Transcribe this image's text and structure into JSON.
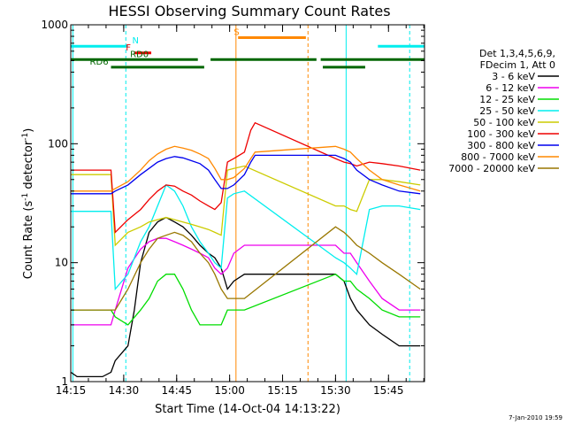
{
  "chart_data": {
    "type": "line",
    "title": "HESSI Observing Summary Count Rates",
    "xlabel": "Start Time (14-Oct-04 14:13:22)",
    "ylabel_main": "Count Rate (s",
    "ylabel_sup1": "-1",
    "ylabel_mid": " detector",
    "ylabel_sup2": "-1",
    "ylabel_end": ")",
    "ylog": true,
    "xlim": [
      14.25,
      15.92
    ],
    "ylim": [
      1,
      1000
    ],
    "x_ticks": [
      {
        "value": 14.25,
        "label": "14:15"
      },
      {
        "value": 14.5,
        "label": "14:30"
      },
      {
        "value": 14.75,
        "label": "14:45"
      },
      {
        "value": 15.0,
        "label": "15:00"
      },
      {
        "value": 15.25,
        "label": "15:15"
      },
      {
        "value": 15.5,
        "label": "15:30"
      },
      {
        "value": 15.75,
        "label": "15:45"
      }
    ],
    "y_ticks": [
      {
        "value": 1,
        "label": "1"
      },
      {
        "value": 10,
        "label": "10"
      },
      {
        "value": 100,
        "label": "100"
      },
      {
        "value": 1000,
        "label": "1000"
      }
    ],
    "legend_header": [
      "Det 1,3,4,5,6,9,",
      "FDecim 1, Att 0"
    ],
    "legend_placement": "right",
    "footer_date": "7-Jan-2010 19:59",
    "series": [
      {
        "name": "3 - 6 keV",
        "color": "#000000",
        "points": [
          [
            14.25,
            1.2
          ],
          [
            14.28,
            1.1
          ],
          [
            14.4,
            1.1
          ],
          [
            14.44,
            1.2
          ],
          [
            14.46,
            1.5
          ],
          [
            14.52,
            2
          ],
          [
            14.55,
            4
          ],
          [
            14.58,
            10
          ],
          [
            14.62,
            18
          ],
          [
            14.66,
            22
          ],
          [
            14.7,
            24
          ],
          [
            14.74,
            22
          ],
          [
            14.78,
            20
          ],
          [
            14.82,
            17
          ],
          [
            14.86,
            14
          ],
          [
            14.9,
            12
          ],
          [
            14.93,
            11
          ],
          [
            14.96,
            9
          ],
          [
            14.99,
            6
          ],
          [
            15.02,
            7
          ],
          [
            15.07,
            8
          ],
          [
            15.5,
            8
          ],
          [
            15.54,
            7
          ],
          [
            15.57,
            5
          ],
          [
            15.6,
            4
          ],
          [
            15.66,
            3
          ],
          [
            15.72,
            2.5
          ],
          [
            15.8,
            2
          ],
          [
            15.9,
            2
          ]
        ]
      },
      {
        "name": "6 - 12 keV",
        "color": "#ee00ee",
        "points": [
          [
            14.25,
            3
          ],
          [
            14.44,
            3
          ],
          [
            14.46,
            4
          ],
          [
            14.52,
            9
          ],
          [
            14.58,
            13
          ],
          [
            14.62,
            15
          ],
          [
            14.66,
            16
          ],
          [
            14.7,
            16
          ],
          [
            14.74,
            15
          ],
          [
            14.78,
            14
          ],
          [
            14.82,
            13
          ],
          [
            14.86,
            12
          ],
          [
            14.9,
            11
          ],
          [
            14.93,
            9
          ],
          [
            14.96,
            8
          ],
          [
            14.99,
            9
          ],
          [
            15.02,
            12
          ],
          [
            15.07,
            14
          ],
          [
            15.5,
            14
          ],
          [
            15.54,
            12
          ],
          [
            15.57,
            12
          ],
          [
            15.6,
            10
          ],
          [
            15.66,
            7
          ],
          [
            15.72,
            5
          ],
          [
            15.8,
            4
          ],
          [
            15.9,
            4
          ]
        ]
      },
      {
        "name": "12 - 25 keV",
        "color": "#00dd00",
        "points": [
          [
            14.25,
            4
          ],
          [
            14.44,
            4
          ],
          [
            14.46,
            3.5
          ],
          [
            14.52,
            3
          ],
          [
            14.58,
            4
          ],
          [
            14.62,
            5
          ],
          [
            14.66,
            7
          ],
          [
            14.7,
            8
          ],
          [
            14.74,
            8
          ],
          [
            14.78,
            6
          ],
          [
            14.82,
            4
          ],
          [
            14.86,
            3
          ],
          [
            14.9,
            3
          ],
          [
            14.93,
            3
          ],
          [
            14.96,
            3
          ],
          [
            14.99,
            4
          ],
          [
            15.02,
            4
          ],
          [
            15.07,
            4
          ],
          [
            15.5,
            8
          ],
          [
            15.54,
            7
          ],
          [
            15.57,
            7
          ],
          [
            15.6,
            6
          ],
          [
            15.66,
            5
          ],
          [
            15.72,
            4
          ],
          [
            15.8,
            3.5
          ],
          [
            15.9,
            3.5
          ]
        ]
      },
      {
        "name": "25 - 50 keV",
        "color": "#00eeee",
        "points": [
          [
            14.25,
            27
          ],
          [
            14.44,
            27
          ],
          [
            14.46,
            6
          ],
          [
            14.52,
            8
          ],
          [
            14.58,
            15
          ],
          [
            14.62,
            20
          ],
          [
            14.66,
            30
          ],
          [
            14.7,
            45
          ],
          [
            14.74,
            40
          ],
          [
            14.78,
            30
          ],
          [
            14.82,
            20
          ],
          [
            14.86,
            15
          ],
          [
            14.9,
            12
          ],
          [
            14.93,
            10
          ],
          [
            14.96,
            9
          ],
          [
            14.99,
            35
          ],
          [
            15.02,
            38
          ],
          [
            15.07,
            40
          ],
          [
            15.5,
            11
          ],
          [
            15.54,
            10
          ],
          [
            15.57,
            9
          ],
          [
            15.6,
            8
          ],
          [
            15.66,
            28
          ],
          [
            15.72,
            30
          ],
          [
            15.8,
            30
          ],
          [
            15.9,
            28
          ]
        ]
      },
      {
        "name": "50 - 100 keV",
        "color": "#cccc00",
        "points": [
          [
            14.25,
            55
          ],
          [
            14.44,
            55
          ],
          [
            14.46,
            14
          ],
          [
            14.52,
            18
          ],
          [
            14.58,
            20
          ],
          [
            14.62,
            22
          ],
          [
            14.66,
            23
          ],
          [
            14.7,
            24
          ],
          [
            14.74,
            23
          ],
          [
            14.78,
            22
          ],
          [
            14.82,
            21
          ],
          [
            14.86,
            20
          ],
          [
            14.9,
            19
          ],
          [
            14.93,
            18
          ],
          [
            14.96,
            17
          ],
          [
            14.99,
            60
          ],
          [
            15.02,
            62
          ],
          [
            15.07,
            65
          ],
          [
            15.5,
            30
          ],
          [
            15.54,
            30
          ],
          [
            15.57,
            28
          ],
          [
            15.6,
            27
          ],
          [
            15.66,
            50
          ],
          [
            15.72,
            50
          ],
          [
            15.8,
            48
          ],
          [
            15.9,
            45
          ]
        ]
      },
      {
        "name": "100 - 300 keV",
        "color": "#ee0000",
        "points": [
          [
            14.25,
            60
          ],
          [
            14.44,
            60
          ],
          [
            14.46,
            18
          ],
          [
            14.52,
            23
          ],
          [
            14.58,
            28
          ],
          [
            14.62,
            34
          ],
          [
            14.66,
            40
          ],
          [
            14.7,
            45
          ],
          [
            14.74,
            44
          ],
          [
            14.78,
            40
          ],
          [
            14.82,
            37
          ],
          [
            14.86,
            33
          ],
          [
            14.9,
            30
          ],
          [
            14.93,
            28
          ],
          [
            14.96,
            32
          ],
          [
            14.99,
            70
          ],
          [
            15.02,
            75
          ],
          [
            15.07,
            85
          ],
          [
            15.1,
            130
          ],
          [
            15.12,
            150
          ],
          [
            15.5,
            75
          ],
          [
            15.54,
            70
          ],
          [
            15.57,
            68
          ],
          [
            15.6,
            65
          ],
          [
            15.66,
            70
          ],
          [
            15.72,
            68
          ],
          [
            15.8,
            65
          ],
          [
            15.9,
            60
          ]
        ]
      },
      {
        "name": "300 - 800 keV",
        "color": "#0000ee",
        "points": [
          [
            14.25,
            38
          ],
          [
            14.44,
            38
          ],
          [
            14.46,
            40
          ],
          [
            14.52,
            45
          ],
          [
            14.58,
            55
          ],
          [
            14.62,
            62
          ],
          [
            14.66,
            70
          ],
          [
            14.7,
            75
          ],
          [
            14.74,
            78
          ],
          [
            14.78,
            76
          ],
          [
            14.82,
            72
          ],
          [
            14.86,
            68
          ],
          [
            14.9,
            60
          ],
          [
            14.93,
            50
          ],
          [
            14.96,
            42
          ],
          [
            14.99,
            42
          ],
          [
            15.02,
            45
          ],
          [
            15.07,
            55
          ],
          [
            15.1,
            70
          ],
          [
            15.12,
            80
          ],
          [
            15.5,
            80
          ],
          [
            15.54,
            75
          ],
          [
            15.57,
            70
          ],
          [
            15.6,
            60
          ],
          [
            15.66,
            50
          ],
          [
            15.72,
            45
          ],
          [
            15.8,
            40
          ],
          [
            15.9,
            38
          ]
        ]
      },
      {
        "name": "800 - 7000 keV",
        "color": "#ff8800",
        "points": [
          [
            14.25,
            40
          ],
          [
            14.44,
            40
          ],
          [
            14.46,
            42
          ],
          [
            14.52,
            48
          ],
          [
            14.58,
            60
          ],
          [
            14.62,
            72
          ],
          [
            14.66,
            82
          ],
          [
            14.7,
            90
          ],
          [
            14.74,
            95
          ],
          [
            14.78,
            92
          ],
          [
            14.82,
            88
          ],
          [
            14.86,
            82
          ],
          [
            14.9,
            75
          ],
          [
            14.93,
            62
          ],
          [
            14.96,
            50
          ],
          [
            14.99,
            50
          ],
          [
            15.02,
            52
          ],
          [
            15.07,
            62
          ],
          [
            15.1,
            75
          ],
          [
            15.12,
            85
          ],
          [
            15.5,
            95
          ],
          [
            15.54,
            90
          ],
          [
            15.57,
            85
          ],
          [
            15.6,
            75
          ],
          [
            15.66,
            60
          ],
          [
            15.72,
            50
          ],
          [
            15.8,
            45
          ],
          [
            15.9,
            40
          ]
        ]
      },
      {
        "name": "7000 - 20000 keV",
        "color": "#997700",
        "points": [
          [
            14.25,
            4
          ],
          [
            14.44,
            4
          ],
          [
            14.46,
            4
          ],
          [
            14.52,
            6
          ],
          [
            14.58,
            10
          ],
          [
            14.62,
            13
          ],
          [
            14.66,
            16
          ],
          [
            14.7,
            17
          ],
          [
            14.74,
            18
          ],
          [
            14.78,
            17
          ],
          [
            14.82,
            15
          ],
          [
            14.86,
            12
          ],
          [
            14.9,
            10
          ],
          [
            14.93,
            8
          ],
          [
            14.96,
            6
          ],
          [
            14.99,
            5
          ],
          [
            15.02,
            5
          ],
          [
            15.07,
            5
          ],
          [
            15.5,
            20
          ],
          [
            15.54,
            18
          ],
          [
            15.57,
            16
          ],
          [
            15.6,
            14
          ],
          [
            15.66,
            12
          ],
          [
            15.72,
            10
          ],
          [
            15.8,
            8
          ],
          [
            15.9,
            6
          ]
        ]
      }
    ],
    "flags": [
      {
        "label": "N",
        "color": "#00eeee",
        "y": 660,
        "segments": [
          [
            14.25,
            14.52
          ],
          [
            15.7,
            15.92
          ]
        ],
        "label_x": 14.54
      },
      {
        "label": "F",
        "color": "#ee0000",
        "y": 580,
        "segments": [
          [
            14.55,
            14.63
          ]
        ],
        "label_x": 14.51
      },
      {
        "label": "RD0",
        "color": "#006600",
        "y": 510,
        "segments": [
          [
            14.25,
            14.85
          ],
          [
            14.91,
            15.41
          ],
          [
            15.43,
            15.92
          ]
        ],
        "label_x": 14.53
      },
      {
        "label": "RD6",
        "color": "#006600",
        "y": 440,
        "segments": [
          [
            14.44,
            14.88
          ],
          [
            15.44,
            15.64
          ]
        ],
        "label_x": 14.34
      },
      {
        "label": "S",
        "color": "#ff8800",
        "y": 780,
        "segments": [
          [
            15.04,
            15.36
          ]
        ],
        "label_x": 15.02
      }
    ],
    "markers": [
      {
        "x": 14.26,
        "color": "#00eeee",
        "style": "solid"
      },
      {
        "x": 14.51,
        "color": "#00eeee",
        "style": "dashed"
      },
      {
        "x": 15.03,
        "color": "#ff8800",
        "style": "solid"
      },
      {
        "x": 15.37,
        "color": "#ff8800",
        "style": "dashed"
      },
      {
        "x": 15.55,
        "color": "#00eeee",
        "style": "solid"
      },
      {
        "x": 15.85,
        "color": "#00eeee",
        "style": "dashed"
      }
    ]
  }
}
